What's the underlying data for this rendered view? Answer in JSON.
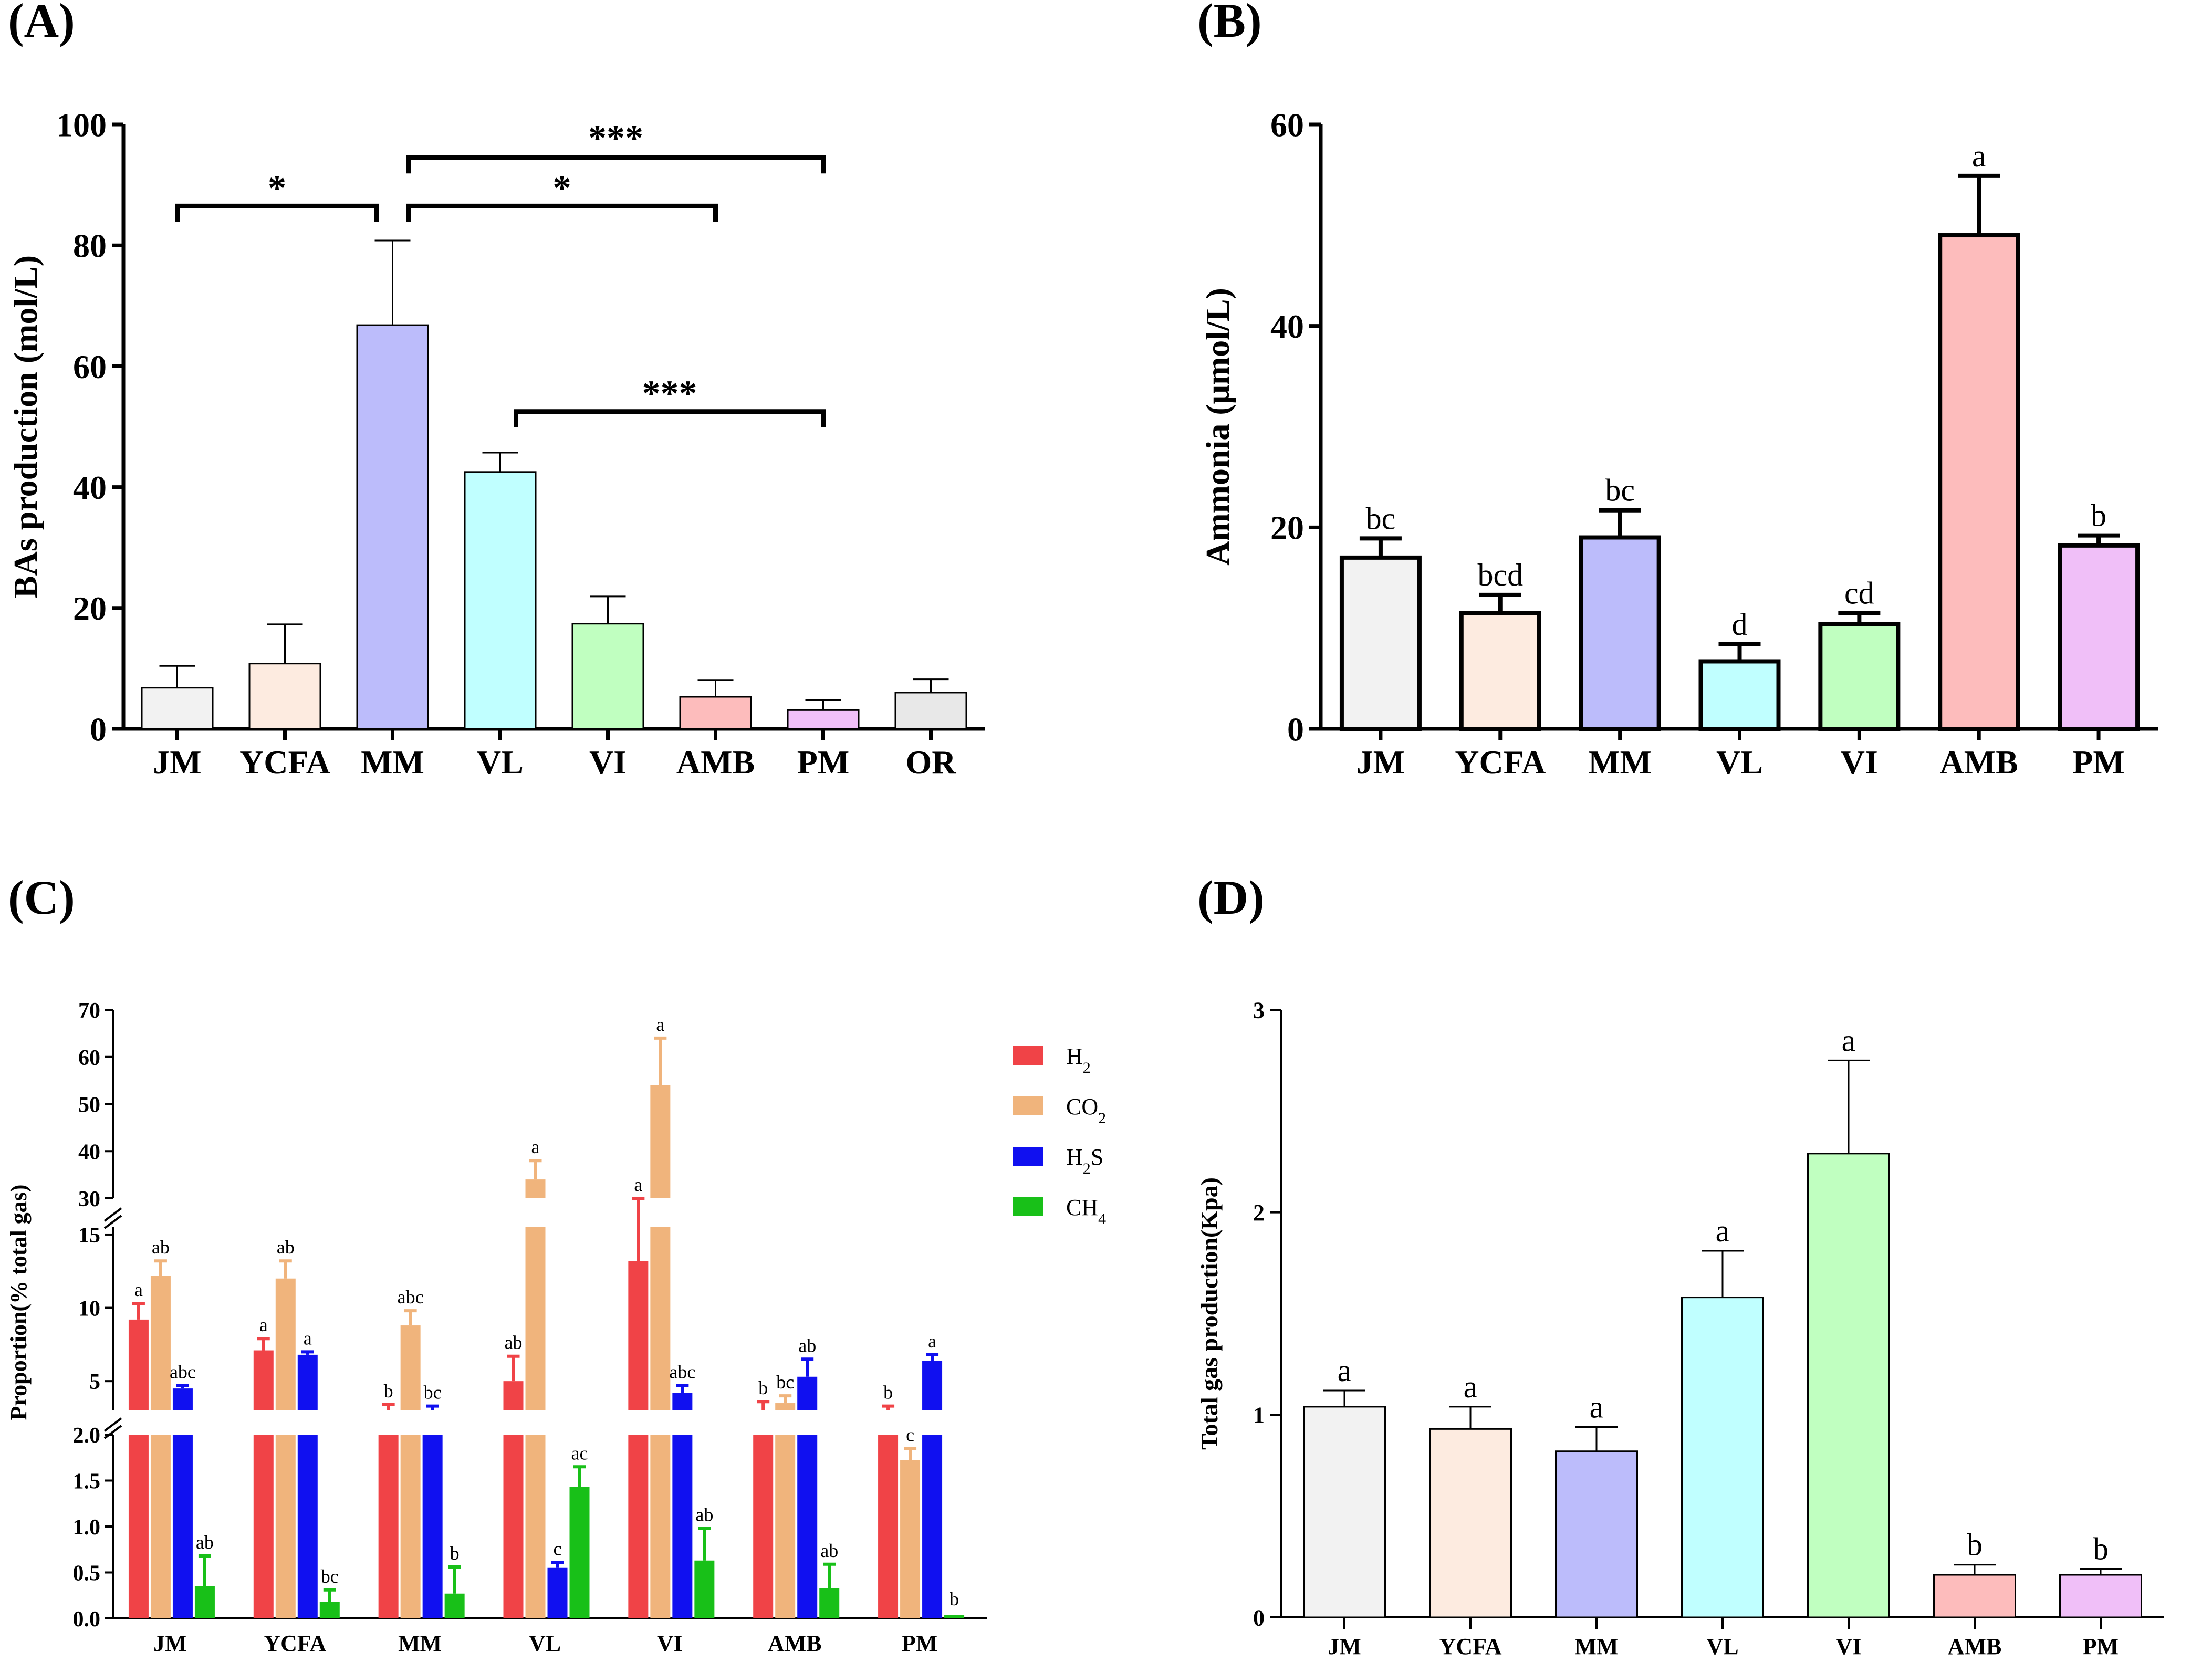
{
  "panels": {
    "A": {
      "label": "(A)",
      "chart_data": {
        "type": "bar",
        "title": "",
        "xlabel": "",
        "ylabel": "BAs production (mol/L)",
        "ylim": [
          0,
          100
        ],
        "yticks": [
          0,
          20,
          40,
          60,
          80,
          100
        ],
        "categories": [
          "JM",
          "YCFA",
          "MM",
          "VL",
          "VI",
          "AMB",
          "PM",
          "OR"
        ],
        "values": [
          6.8,
          10.8,
          66.8,
          42.5,
          17.4,
          5.3,
          3.1,
          6.0
        ],
        "errors": [
          3.6,
          6.5,
          14.0,
          3.2,
          4.5,
          2.8,
          1.7,
          2.2
        ],
        "colors": [
          "#f2f2f2",
          "#fdebe0",
          "#bcbcfb",
          "#c0ffff",
          "#c0ffc0",
          "#fdbcbc",
          "#f0bff8",
          "#e8e8e8"
        ],
        "significance": [
          {
            "from": 0,
            "to": 2,
            "label": "*"
          },
          {
            "from": 2,
            "to": 5,
            "label": "*"
          },
          {
            "from": 2,
            "to": 6,
            "label": "***"
          },
          {
            "from": 3,
            "to": 6,
            "label": "***"
          }
        ]
      }
    },
    "B": {
      "label": "(B)",
      "chart_data": {
        "type": "bar",
        "title": "",
        "xlabel": "",
        "ylabel": "Ammonia (μmol/L)",
        "ylim": [
          0,
          60
        ],
        "yticks": [
          0,
          20,
          40,
          60
        ],
        "categories": [
          "JM",
          "YCFA",
          "MM",
          "VL",
          "VI",
          "AMB",
          "PM"
        ],
        "values": [
          17.0,
          11.5,
          19.0,
          6.7,
          10.4,
          49.0,
          18.2
        ],
        "errors": [
          1.9,
          1.8,
          2.7,
          1.7,
          1.1,
          5.9,
          1.0
        ],
        "letters": [
          "bc",
          "bcd",
          "bc",
          "d",
          "cd",
          "a",
          "b"
        ],
        "colors": [
          "#f2f2f2",
          "#fdebe0",
          "#bcbcfb",
          "#c0ffff",
          "#c0ffc0",
          "#fdbcbc",
          "#f0bff8"
        ]
      }
    },
    "C": {
      "label": "(C)",
      "chart_data": {
        "type": "bar",
        "title": "",
        "xlabel": "",
        "ylabel": "Proportion(% total gas)",
        "axis_breaks": [
          {
            "range": [
              0,
              2
            ],
            "ticks": [
              "0.0",
              "0.5",
              "1.0",
              "1.5",
              "2.0"
            ]
          },
          {
            "range": [
              3,
              15.5
            ],
            "ticks": [
              "5",
              "10",
              "15"
            ]
          },
          {
            "range": [
              30,
              70
            ],
            "ticks": [
              "30",
              "40",
              "50",
              "60",
              "70"
            ]
          }
        ],
        "categories": [
          "JM",
          "YCFA",
          "MM",
          "VL",
          "VI",
          "AMB",
          "PM"
        ],
        "legend": {
          "position": "top-right",
          "entries": [
            "H2",
            "CO2",
            "H2S",
            "CH4"
          ]
        },
        "series": [
          {
            "name": "H2",
            "color": "#f04347",
            "values": [
              9.2,
              7.1,
              2.8,
              5.0,
              13.2,
              2.8,
              2.5
            ],
            "errors": [
              1.1,
              0.8,
              0.6,
              1.7,
              2.8,
              0.8,
              0.8
            ],
            "letters": [
              "a",
              "a",
              "b",
              "ab",
              "a",
              "b",
              "b"
            ]
          },
          {
            "name": "CO2",
            "color": "#f0b47c",
            "values": [
              12.2,
              12.0,
              8.8,
              34.0,
              54.0,
              3.5,
              1.72
            ],
            "errors": [
              1.0,
              1.2,
              1.0,
              4.0,
              10.0,
              0.5,
              0.13
            ],
            "letters": [
              "ab",
              "ab",
              "abc",
              "a",
              "a",
              "bc",
              "c"
            ]
          },
          {
            "name": "H2S",
            "color": "#1010f0",
            "values": [
              4.5,
              6.8,
              3.0,
              0.55,
              4.2,
              5.3,
              6.4
            ],
            "errors": [
              0.2,
              0.2,
              0.3,
              0.06,
              0.5,
              1.2,
              0.4
            ],
            "letters": [
              "abc",
              "a",
              "bc",
              "c",
              "abc",
              "ab",
              "a"
            ]
          },
          {
            "name": "CH4",
            "color": "#18c018",
            "values": [
              0.35,
              0.18,
              0.27,
              1.43,
              0.63,
              0.33,
              0.04
            ],
            "errors": [
              0.33,
              0.13,
              0.29,
              0.22,
              0.35,
              0.26,
              0.0
            ],
            "letters": [
              "ab",
              "bc",
              "b",
              "ac",
              "ab",
              "ab",
              "b"
            ]
          }
        ]
      }
    },
    "D": {
      "label": "(D)",
      "chart_data": {
        "type": "bar",
        "title": "",
        "xlabel": "",
        "ylabel": "Total gas production(Kpa)",
        "ylim": [
          0,
          3
        ],
        "yticks": [
          0,
          1,
          2,
          3
        ],
        "categories": [
          "JM",
          "YCFA",
          "MM",
          "VL",
          "VI",
          "AMB",
          "PM"
        ],
        "values": [
          1.04,
          0.93,
          0.82,
          1.58,
          2.29,
          0.21,
          0.21
        ],
        "errors": [
          0.08,
          0.11,
          0.12,
          0.23,
          0.46,
          0.05,
          0.03
        ],
        "letters": [
          "a",
          "a",
          "a",
          "a",
          "a",
          "b",
          "b"
        ],
        "colors": [
          "#f2f2f2",
          "#fdebe0",
          "#bcbcfb",
          "#c0ffff",
          "#c0ffc0",
          "#fdbcbc",
          "#f0bff8"
        ]
      }
    }
  }
}
